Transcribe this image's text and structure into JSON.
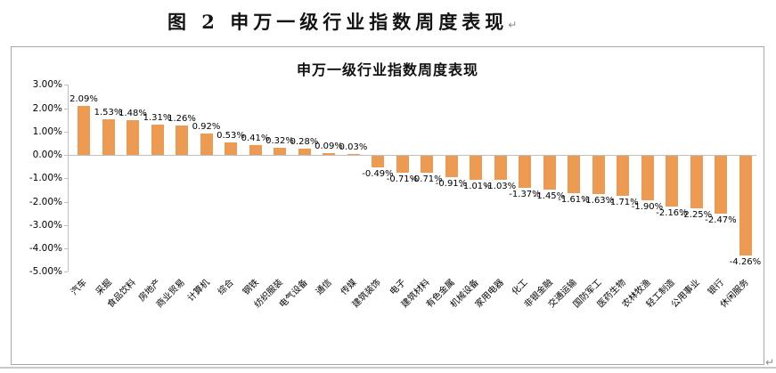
{
  "page": {
    "doc_title": "图 2 申万一级行业指数周度表现",
    "return_mark": "↵"
  },
  "chart_data": {
    "type": "bar",
    "title": "申万一级行业指数周度表现",
    "categories": [
      "汽车",
      "采掘",
      "食品饮料",
      "房地产",
      "商业贸易",
      "计算机",
      "综合",
      "钢铁",
      "纺织服装",
      "电气设备",
      "通信",
      "传媒",
      "建筑装饰",
      "电子",
      "建筑材料",
      "有色金属",
      "机械设备",
      "家用电器",
      "化工",
      "非银金融",
      "交通运输",
      "国防军工",
      "医药生物",
      "农林牧渔",
      "轻工制造",
      "公用事业",
      "银行",
      "休闲服务"
    ],
    "values": [
      2.09,
      1.53,
      1.48,
      1.31,
      1.26,
      0.92,
      0.53,
      0.41,
      0.32,
      0.28,
      0.09,
      0.03,
      -0.49,
      -0.71,
      -0.71,
      -0.91,
      -1.01,
      -1.03,
      -1.37,
      -1.45,
      -1.61,
      -1.63,
      -1.71,
      -1.9,
      -2.16,
      -2.25,
      -2.47,
      -4.26
    ],
    "value_labels": [
      "2.09%",
      "1.53%",
      "1.48%",
      "1.31%",
      "1.26%",
      "0.92%",
      "0.53%",
      "0.41%",
      "0.32%",
      "0.28%",
      "0.09%",
      "0.03%",
      "-0.49%",
      "-0.71%",
      "-0.71%",
      "-0.91%",
      "-1.01%",
      "-1.03%",
      "-1.37%",
      "-1.45%",
      "-1.61%",
      "-1.63%",
      "-1.71%",
      "-1.90%",
      "-2.16%",
      "-2.25%",
      "-2.47%",
      "-4.26%"
    ],
    "y_tick_labels": [
      "3.00%",
      "2.00%",
      "1.00%",
      "0.00%",
      "-1.00%",
      "-2.00%",
      "-3.00%",
      "-4.00%",
      "-5.00%"
    ],
    "y_tick_values": [
      3,
      2,
      1,
      0,
      -1,
      -2,
      -3,
      -4,
      -5
    ],
    "ylim": [
      -5,
      3
    ],
    "xlabel": "",
    "ylabel": "",
    "grid": false,
    "legend": "none",
    "bar_color": "#ED9B52",
    "axis_color": "#BFBFBF",
    "text_color": "#000000"
  }
}
